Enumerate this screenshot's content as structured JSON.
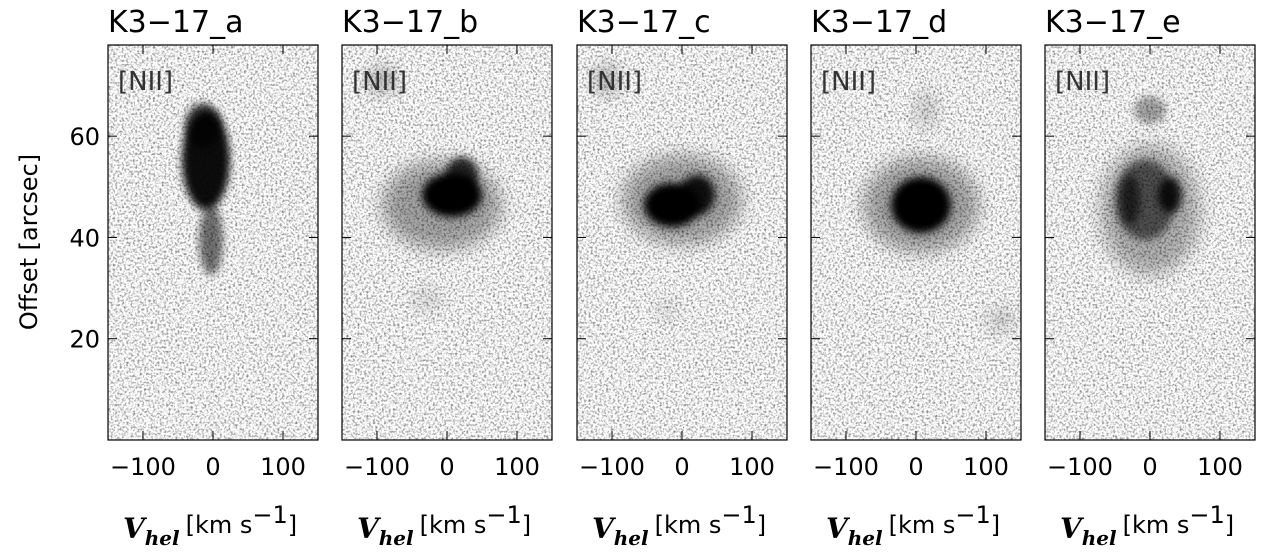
{
  "chart_data": [
    {
      "type": "image",
      "title": "K3−17_a",
      "annotation": "[NII]",
      "xlim": [
        -150,
        150
      ],
      "xticks": [
        {
          "value": -100,
          "label": "−100"
        },
        0,
        100
      ],
      "ylim": [
        0,
        78
      ],
      "yticks": [
        20,
        40,
        60
      ],
      "y_label": "Offset [arcsec]",
      "x_label": {
        "symbol": "V",
        "subscript": "hel",
        "unit": "[km s",
        "exponent": "−1",
        "close": "]"
      }
    },
    {
      "type": "image",
      "title": "K3−17_b",
      "annotation": "[NII]",
      "xlim": [
        -150,
        150
      ],
      "xticks": [
        {
          "value": -100,
          "label": "−100"
        },
        0,
        100
      ],
      "ylim": [
        0,
        78
      ],
      "yticks": [
        20,
        40,
        60
      ],
      "x_label": {
        "symbol": "V",
        "subscript": "hel",
        "unit": "[km s",
        "exponent": "−1",
        "close": "]"
      }
    },
    {
      "type": "image",
      "title": "K3−17_c",
      "annotation": "[NII]",
      "xlim": [
        -150,
        150
      ],
      "xticks": [
        {
          "value": -100,
          "label": "−100"
        },
        0,
        100
      ],
      "ylim": [
        0,
        78
      ],
      "yticks": [
        20,
        40,
        60
      ],
      "x_label": {
        "symbol": "V",
        "subscript": "hel",
        "unit": "[km s",
        "exponent": "−1",
        "close": "]"
      }
    },
    {
      "type": "image",
      "title": "K3−17_d",
      "annotation": "[NII]",
      "xlim": [
        -150,
        150
      ],
      "xticks": [
        {
          "value": -100,
          "label": "−100"
        },
        0,
        100
      ],
      "ylim": [
        0,
        78
      ],
      "yticks": [
        20,
        40,
        60
      ],
      "x_label": {
        "symbol": "V",
        "subscript": "hel",
        "unit": "[km s",
        "exponent": "−1",
        "close": "]"
      }
    },
    {
      "type": "image",
      "title": "K3−17_e",
      "annotation": "[NII]",
      "xlim": [
        -150,
        150
      ],
      "xticks": [
        {
          "value": -100,
          "label": "−100"
        },
        0,
        100
      ],
      "ylim": [
        0,
        78
      ],
      "yticks": [
        20,
        40,
        60
      ],
      "x_label": {
        "symbol": "V",
        "subscript": "hel",
        "unit": "[km s",
        "exponent": "−1",
        "close": "]"
      }
    }
  ]
}
